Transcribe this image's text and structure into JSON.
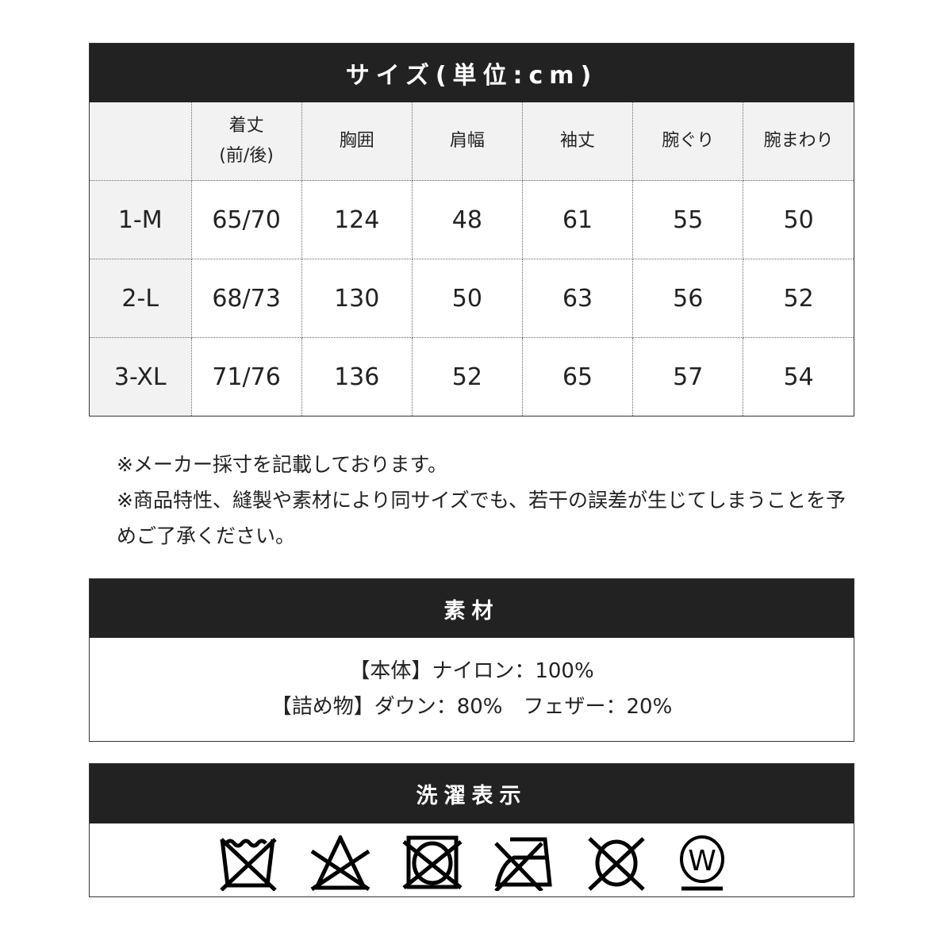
{
  "size_table": {
    "title": "サイズ(単位:cm)",
    "headers": [
      "",
      "着丈\n(前/後)",
      "胸囲",
      "肩幅",
      "袖丈",
      "腕ぐり",
      "腕まわり"
    ],
    "header_lines": [
      "着丈",
      "(前/後)"
    ],
    "rows": [
      [
        "1-M",
        "65/70",
        "124",
        "48",
        "61",
        "55",
        "50"
      ],
      [
        "2-L",
        "68/73",
        "130",
        "50",
        "63",
        "56",
        "52"
      ],
      [
        "3-XL",
        "71/76",
        "136",
        "52",
        "65",
        "57",
        "54"
      ]
    ]
  },
  "notes": [
    "※メーカー採寸を記載しております。",
    "※商品特性、縫製や素材により同サイズでも、若干の誤差が生じてしまうことを予めご了承ください。"
  ],
  "material": {
    "title": "素材",
    "lines": [
      "【本体】ナイロン：100%",
      "【詰め物】ダウン：80%　フェザー：20%"
    ]
  },
  "care": {
    "title": "洗濯表示",
    "icons": [
      "no-wash-icon",
      "no-bleach-icon",
      "no-tumble-dry-icon",
      "no-iron-icon",
      "no-dry-clean-icon",
      "wet-clean-gentle-icon"
    ],
    "wet_letter": "W"
  }
}
